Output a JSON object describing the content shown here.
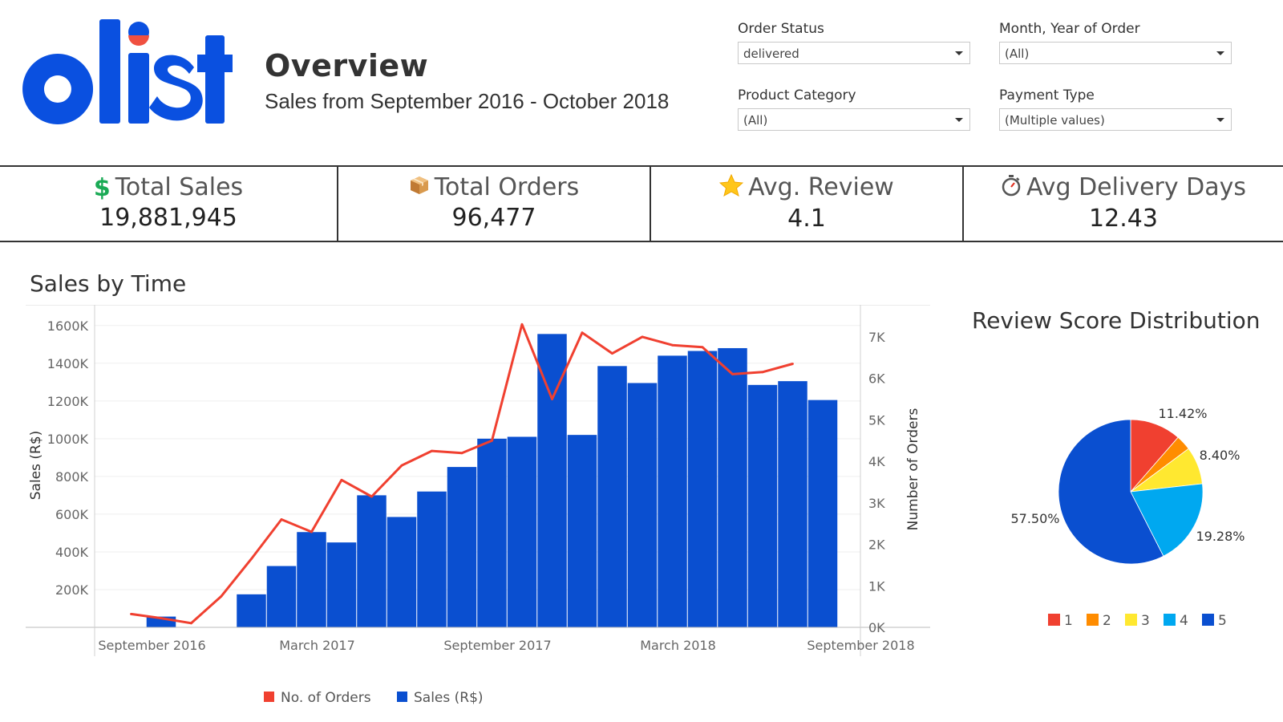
{
  "header": {
    "logo_text": "olist",
    "title": "Overview",
    "subtitle": "Sales from September 2016 - October 2018"
  },
  "filters": [
    {
      "label": "Order Status",
      "value": "delivered"
    },
    {
      "label": "Month, Year of Order",
      "value": "(All)"
    },
    {
      "label": "Product Category",
      "value": "(All)"
    },
    {
      "label": "Payment Type",
      "value": "(Multiple values)"
    }
  ],
  "kpis": [
    {
      "label": "Total Sales",
      "value": "19,881,945",
      "icon": "dollar-icon"
    },
    {
      "label": "Total Orders",
      "value": "96,477",
      "icon": "package-icon"
    },
    {
      "label": "Avg. Review",
      "value": "4.1",
      "icon": "star-icon"
    },
    {
      "label": "Avg Delivery Days",
      "value": "12.43",
      "icon": "stopwatch-icon"
    }
  ],
  "colors": {
    "brand_blue": "#0a50e0",
    "bar_blue": "#0a4fd0",
    "line_red": "#f04030",
    "dollar_green": "#1aaa55"
  },
  "chart_data": [
    {
      "type": "bar",
      "title": "Sales by Time",
      "ylabel": "Sales (R$)",
      "y2label": "Number of Orders",
      "ylim": [
        0,
        1650000
      ],
      "y2lim": [
        0,
        7500
      ],
      "yticks": [
        "200K",
        "400K",
        "600K",
        "800K",
        "1000K",
        "1200K",
        "1400K",
        "1600K"
      ],
      "y2ticks": [
        "0K",
        "1K",
        "2K",
        "3K",
        "4K",
        "5K",
        "6K",
        "7K"
      ],
      "xtick_labels": [
        "September 2016",
        "March 2017",
        "September 2017",
        "March 2018",
        "September 2018"
      ],
      "categories": [
        "2016-09",
        "2016-10",
        "2016-11",
        "2016-12",
        "2017-01",
        "2017-02",
        "2017-03",
        "2017-04",
        "2017-05",
        "2017-06",
        "2017-07",
        "2017-08",
        "2017-09",
        "2017-10",
        "2017-11",
        "2017-12",
        "2018-01",
        "2018-02",
        "2018-03",
        "2018-04",
        "2018-05",
        "2018-06",
        "2018-07",
        "2018-08",
        "2018-09",
        "2018-10"
      ],
      "series": [
        {
          "name": "Sales (R$)",
          "type": "bar",
          "axis": "left",
          "values": [
            null,
            57000,
            null,
            null,
            175000,
            325000,
            505000,
            450000,
            700000,
            585000,
            720000,
            850000,
            1000000,
            1010000,
            1555000,
            1020000,
            1385000,
            1295000,
            1440000,
            1465000,
            1480000,
            1285000,
            1305000,
            1205000,
            null,
            null
          ]
        },
        {
          "name": "No. of Orders",
          "type": "line",
          "axis": "right",
          "values": [
            320,
            220,
            100,
            750,
            1650,
            2600,
            2300,
            3550,
            3150,
            3900,
            4250,
            4200,
            4500,
            7300,
            5500,
            7100,
            6600,
            7000,
            6800,
            6750,
            6100,
            6150,
            6350,
            null,
            null,
            null
          ]
        }
      ],
      "legend": {
        "position": "bottom",
        "items": [
          "No. of Orders",
          "Sales (R$)"
        ]
      }
    },
    {
      "type": "pie",
      "title": "Review Score Distribution",
      "labels": [
        "1",
        "2",
        "3",
        "4",
        "5"
      ],
      "values": [
        11.42,
        3.4,
        8.4,
        19.28,
        57.5
      ],
      "value_labels": [
        "11.42%",
        "",
        "8.40%",
        "19.28%",
        "57.50%"
      ],
      "colors": [
        "#f04030",
        "#ff8c00",
        "#ffe830",
        "#00a8f0",
        "#0a4fd0"
      ],
      "legend": {
        "position": "bottom"
      }
    }
  ]
}
